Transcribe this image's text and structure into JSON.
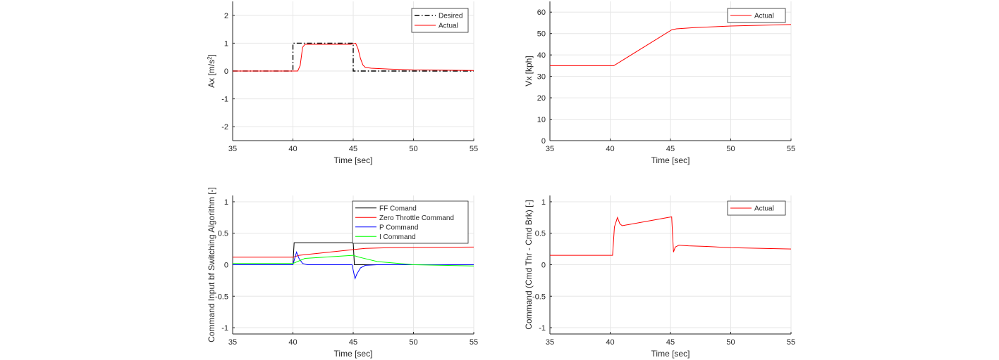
{
  "chart_data": [
    {
      "type": "line",
      "xlabel": "Time [sec]",
      "ylabel_base": "Ax [m/s",
      "ylabel_sup": "2",
      "ylabel_end": "]",
      "xlim": [
        35,
        55
      ],
      "ylim": [
        -2.5,
        2.5
      ],
      "xticks": [
        35,
        40,
        45,
        50,
        55
      ],
      "yticks": [
        -2,
        -1,
        0,
        1,
        2
      ],
      "grid": true,
      "legend_position": "top-right",
      "series": [
        {
          "name": "Desired",
          "color": "#000000",
          "dash": "dashdot",
          "x": [
            35,
            40,
            40,
            45,
            45,
            55
          ],
          "y": [
            0,
            0,
            1,
            1,
            0,
            0
          ]
        },
        {
          "name": "Actual",
          "color": "#ff0000",
          "dash": "solid",
          "x": [
            35,
            40.4,
            40.6,
            40.8,
            41.0,
            41.5,
            44.8,
            45.2,
            45.4,
            45.6,
            45.8,
            46.0,
            46.5,
            48,
            50,
            55
          ],
          "y": [
            0,
            0,
            0.2,
            0.85,
            0.96,
            0.96,
            0.96,
            1.0,
            0.8,
            0.45,
            0.22,
            0.13,
            0.1,
            0.07,
            0.04,
            0.02
          ]
        }
      ]
    },
    {
      "type": "line",
      "xlabel": "Time [sec]",
      "ylabel": "Vx [kph]",
      "xlim": [
        35,
        55
      ],
      "ylim": [
        0,
        65
      ],
      "xticks": [
        35,
        40,
        45,
        50,
        55
      ],
      "yticks": [
        0,
        10,
        20,
        30,
        40,
        50,
        60
      ],
      "grid": true,
      "legend_position": "top-right",
      "series": [
        {
          "name": "Actual",
          "color": "#ff0000",
          "dash": "solid",
          "x": [
            35,
            40.3,
            45.1,
            45.5,
            47,
            50,
            55
          ],
          "y": [
            35,
            35,
            51.7,
            52.2,
            52.8,
            53.5,
            54.2
          ]
        }
      ]
    },
    {
      "type": "line",
      "xlabel": "Time [sec]",
      "ylabel": "Command Input bf Switching Algorithm [-]",
      "xlim": [
        35,
        55
      ],
      "ylim": [
        -1.1,
        1.1
      ],
      "xticks": [
        35,
        40,
        45,
        50,
        55
      ],
      "yticks": [
        -1,
        -0.5,
        0,
        0.5,
        1
      ],
      "ytick_labels": [
        "-1",
        "-0.5",
        "0",
        "0.5",
        "1"
      ],
      "grid": true,
      "legend_position": "top-right",
      "series": [
        {
          "name": "FF Comand",
          "color": "#000000",
          "dash": "solid",
          "x": [
            35,
            40,
            40.1,
            45,
            45.1,
            55
          ],
          "y": [
            0,
            0,
            0.35,
            0.35,
            0,
            0
          ]
        },
        {
          "name": "Zero Throttle Command",
          "color": "#ff0000",
          "dash": "solid",
          "x": [
            35,
            40,
            40.5,
            45,
            46,
            48,
            50,
            55
          ],
          "y": [
            0.12,
            0.12,
            0.15,
            0.24,
            0.26,
            0.27,
            0.275,
            0.28
          ]
        },
        {
          "name": "P Command",
          "color": "#0000ff",
          "dash": "solid",
          "x": [
            35,
            40,
            40.3,
            40.5,
            40.8,
            41.2,
            44.9,
            45.15,
            45.3,
            45.6,
            46,
            47,
            55
          ],
          "y": [
            0,
            0,
            0.2,
            0.1,
            0.02,
            0,
            0,
            -0.22,
            -0.15,
            -0.05,
            -0.01,
            0,
            0
          ]
        },
        {
          "name": "I Command",
          "color": "#00ff00",
          "dash": "solid",
          "x": [
            35,
            40,
            41,
            45,
            45.5,
            47,
            50,
            55
          ],
          "y": [
            0.02,
            0.02,
            0.1,
            0.15,
            0.12,
            0.05,
            0,
            -0.02
          ]
        }
      ]
    },
    {
      "type": "line",
      "xlabel": "Time [sec]",
      "ylabel": "Command (Cmd Thr - Cmd Brk) [-]",
      "xlim": [
        35,
        55
      ],
      "ylim": [
        -1.1,
        1.1
      ],
      "xticks": [
        35,
        40,
        45,
        50,
        55
      ],
      "yticks": [
        -1,
        -0.5,
        0,
        0.5,
        1
      ],
      "ytick_labels": [
        "-1",
        "-0.5",
        "0",
        "0.5",
        "1"
      ],
      "grid": true,
      "legend_position": "top-right",
      "series": [
        {
          "name": "Actual",
          "color": "#ff0000",
          "dash": "solid",
          "x": [
            35,
            40.2,
            40.35,
            40.6,
            40.8,
            41.0,
            45.1,
            45.25,
            45.4,
            45.7,
            46.5,
            48,
            50,
            55
          ],
          "y": [
            0.15,
            0.15,
            0.6,
            0.75,
            0.65,
            0.62,
            0.76,
            0.2,
            0.28,
            0.31,
            0.3,
            0.29,
            0.27,
            0.25
          ]
        }
      ]
    }
  ]
}
